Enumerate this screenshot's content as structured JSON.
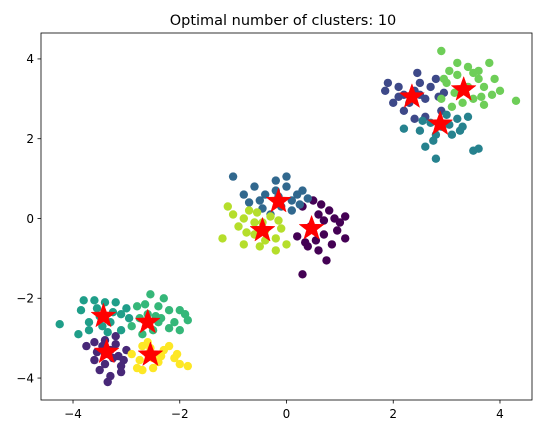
{
  "chart_data": {
    "type": "scatter",
    "title": "Optimal number of clusters: 10",
    "xlabel": "",
    "ylabel": "",
    "xlim": [
      -4.6,
      4.6
    ],
    "ylim": [
      -4.55,
      4.65
    ],
    "xticks": [
      -4,
      -2,
      0,
      2,
      4
    ],
    "yticks": [
      -4,
      -2,
      0,
      2,
      4
    ],
    "grid": false,
    "centroid_color": "#ff0000",
    "series": [
      {
        "color": "#440154",
        "points": [
          [
            0.3,
            0.3
          ],
          [
            0.5,
            0.45
          ],
          [
            0.6,
            0.1
          ],
          [
            0.7,
            -0.05
          ],
          [
            0.8,
            0.2
          ],
          [
            0.9,
            0.0
          ],
          [
            1.0,
            -0.1
          ],
          [
            1.1,
            0.05
          ],
          [
            0.95,
            -0.3
          ],
          [
            0.7,
            -0.4
          ],
          [
            0.55,
            -0.55
          ],
          [
            0.4,
            -0.7
          ],
          [
            0.35,
            -0.6
          ],
          [
            0.6,
            -0.8
          ],
          [
            0.75,
            -1.05
          ],
          [
            0.3,
            -1.4
          ],
          [
            1.1,
            -0.5
          ],
          [
            0.2,
            -0.45
          ],
          [
            0.45,
            -0.2
          ],
          [
            0.85,
            -0.65
          ],
          [
            0.65,
            0.35
          ]
        ]
      },
      {
        "color": "#482878",
        "points": [
          [
            -3.2,
            -2.95
          ],
          [
            -3.4,
            -3.05
          ],
          [
            -3.6,
            -3.1
          ],
          [
            -3.75,
            -3.2
          ],
          [
            -3.3,
            -3.3
          ],
          [
            -3.15,
            -3.45
          ],
          [
            -3.4,
            -3.65
          ],
          [
            -3.5,
            -3.8
          ],
          [
            -3.3,
            -3.95
          ],
          [
            -3.35,
            -4.1
          ],
          [
            -3.1,
            -3.7
          ],
          [
            -3.0,
            -3.3
          ],
          [
            -3.55,
            -3.35
          ],
          [
            -3.05,
            -3.55
          ],
          [
            -3.45,
            -3.2
          ],
          [
            -3.2,
            -3.15
          ],
          [
            -3.6,
            -3.55
          ],
          [
            -3.25,
            -3.5
          ],
          [
            -3.1,
            -3.85
          ],
          [
            -3.4,
            -3.4
          ]
        ]
      },
      {
        "color": "#3e4989",
        "points": [
          [
            2.2,
            3.1
          ],
          [
            2.4,
            3.2
          ],
          [
            2.6,
            3.0
          ],
          [
            2.7,
            3.3
          ],
          [
            2.8,
            3.5
          ],
          [
            2.5,
            3.4
          ],
          [
            2.3,
            2.9
          ],
          [
            2.1,
            3.3
          ],
          [
            1.9,
            3.4
          ],
          [
            2.0,
            2.9
          ],
          [
            2.2,
            2.7
          ],
          [
            2.4,
            2.5
          ],
          [
            2.5,
            3.1
          ],
          [
            2.9,
            2.7
          ],
          [
            2.95,
            3.15
          ],
          [
            2.6,
            2.55
          ],
          [
            2.1,
            3.05
          ],
          [
            2.85,
            3.05
          ],
          [
            1.85,
            3.2
          ],
          [
            2.45,
            3.65
          ]
        ]
      },
      {
        "color": "#31688e",
        "points": [
          [
            -0.6,
            0.8
          ],
          [
            -0.4,
            0.6
          ],
          [
            -0.2,
            0.7
          ],
          [
            0.0,
            0.8
          ],
          [
            0.2,
            0.6
          ],
          [
            0.4,
            0.5
          ],
          [
            0.3,
            0.7
          ],
          [
            -0.1,
            0.3
          ],
          [
            0.1,
            0.2
          ],
          [
            -0.8,
            0.6
          ],
          [
            -0.5,
            0.45
          ],
          [
            -0.3,
            0.1
          ],
          [
            0.0,
            1.05
          ],
          [
            -0.2,
            0.95
          ],
          [
            0.1,
            0.45
          ],
          [
            -1.0,
            1.05
          ],
          [
            -0.7,
            0.4
          ],
          [
            0.25,
            0.35
          ],
          [
            -0.45,
            0.25
          ],
          [
            -0.15,
            0.55
          ]
        ]
      },
      {
        "color": "#26828e",
        "points": [
          [
            2.5,
            2.2
          ],
          [
            2.7,
            2.4
          ],
          [
            2.9,
            2.3
          ],
          [
            3.1,
            2.1
          ],
          [
            3.2,
            2.5
          ],
          [
            3.3,
            2.3
          ],
          [
            3.0,
            2.6
          ],
          [
            2.8,
            2.1
          ],
          [
            2.6,
            1.8
          ],
          [
            2.8,
            1.5
          ],
          [
            3.5,
            1.7
          ],
          [
            3.6,
            1.75
          ],
          [
            2.2,
            2.25
          ],
          [
            3.4,
            2.55
          ],
          [
            3.05,
            2.35
          ],
          [
            2.75,
            1.95
          ],
          [
            3.25,
            2.2
          ],
          [
            2.55,
            2.45
          ]
        ]
      },
      {
        "color": "#1f9e89",
        "points": [
          [
            -4.25,
            -2.65
          ],
          [
            -3.8,
            -2.05
          ],
          [
            -3.6,
            -2.05
          ],
          [
            -3.4,
            -2.1
          ],
          [
            -3.2,
            -2.1
          ],
          [
            -3.0,
            -2.25
          ],
          [
            -3.5,
            -2.45
          ],
          [
            -3.3,
            -2.6
          ],
          [
            -3.7,
            -2.8
          ],
          [
            -3.9,
            -2.9
          ],
          [
            -3.1,
            -2.4
          ],
          [
            -3.55,
            -2.25
          ],
          [
            -3.25,
            -2.35
          ],
          [
            -3.7,
            -2.6
          ],
          [
            -3.35,
            -2.85
          ],
          [
            -2.95,
            -2.5
          ],
          [
            -3.85,
            -2.3
          ],
          [
            -3.1,
            -2.8
          ],
          [
            -3.45,
            -2.7
          ]
        ]
      },
      {
        "color": "#35b779",
        "points": [
          [
            -2.8,
            -2.2
          ],
          [
            -2.6,
            -2.4
          ],
          [
            -2.4,
            -2.2
          ],
          [
            -2.2,
            -2.3
          ],
          [
            -2.0,
            -2.3
          ],
          [
            -1.9,
            -2.4
          ],
          [
            -2.5,
            -2.8
          ],
          [
            -2.7,
            -2.9
          ],
          [
            -2.9,
            -2.7
          ],
          [
            -2.4,
            -2.6
          ],
          [
            -2.1,
            -2.6
          ],
          [
            -1.85,
            -2.55
          ],
          [
            -2.55,
            -1.9
          ],
          [
            -2.3,
            -2.0
          ],
          [
            -2.0,
            -2.8
          ],
          [
            -2.75,
            -2.5
          ],
          [
            -2.2,
            -2.75
          ],
          [
            -2.45,
            -2.45
          ],
          [
            -2.65,
            -2.15
          ],
          [
            -2.35,
            -2.5
          ]
        ]
      },
      {
        "color": "#6ece58",
        "points": [
          [
            2.9,
            4.2
          ],
          [
            3.2,
            3.9
          ],
          [
            3.4,
            3.8
          ],
          [
            3.6,
            3.7
          ],
          [
            3.8,
            3.9
          ],
          [
            3.9,
            3.5
          ],
          [
            3.7,
            3.3
          ],
          [
            3.5,
            3.0
          ],
          [
            3.3,
            2.9
          ],
          [
            3.1,
            2.8
          ],
          [
            2.9,
            3.0
          ],
          [
            3.0,
            3.4
          ],
          [
            3.2,
            3.6
          ],
          [
            4.0,
            3.2
          ],
          [
            4.3,
            2.95
          ],
          [
            3.7,
            2.85
          ],
          [
            3.6,
            3.5
          ],
          [
            3.4,
            3.3
          ],
          [
            3.15,
            3.15
          ],
          [
            3.85,
            3.1
          ],
          [
            3.5,
            3.65
          ],
          [
            3.05,
            3.7
          ],
          [
            2.95,
            3.5
          ],
          [
            3.65,
            3.05
          ]
        ]
      },
      {
        "color": "#b5de2b",
        "points": [
          [
            -1.1,
            0.3
          ],
          [
            -1.0,
            0.1
          ],
          [
            -0.8,
            0.0
          ],
          [
            -0.6,
            -0.1
          ],
          [
            -0.4,
            -0.3
          ],
          [
            -0.2,
            -0.5
          ],
          [
            -0.6,
            -0.4
          ],
          [
            -0.8,
            -0.65
          ],
          [
            -0.5,
            -0.7
          ],
          [
            -0.2,
            -0.8
          ],
          [
            -0.4,
            -0.55
          ],
          [
            0.0,
            -0.65
          ],
          [
            -0.7,
            0.2
          ],
          [
            -1.2,
            -0.5
          ],
          [
            -0.3,
            0.05
          ],
          [
            -0.9,
            -0.2
          ],
          [
            -0.55,
            0.15
          ],
          [
            -0.1,
            -0.25
          ],
          [
            -0.75,
            -0.35
          ],
          [
            -0.45,
            -0.1
          ],
          [
            -0.15,
            -0.05
          ]
        ]
      },
      {
        "color": "#fde725",
        "points": [
          [
            -2.7,
            -3.2
          ],
          [
            -2.6,
            -3.4
          ],
          [
            -2.5,
            -3.5
          ],
          [
            -2.3,
            -3.3
          ],
          [
            -2.1,
            -3.5
          ],
          [
            -2.0,
            -3.65
          ],
          [
            -1.85,
            -3.7
          ],
          [
            -2.8,
            -3.75
          ],
          [
            -2.7,
            -3.8
          ],
          [
            -2.4,
            -3.6
          ],
          [
            -2.9,
            -3.4
          ],
          [
            -2.6,
            -3.1
          ],
          [
            -2.2,
            -3.2
          ],
          [
            -2.5,
            -3.75
          ],
          [
            -2.35,
            -3.45
          ],
          [
            -2.05,
            -3.4
          ],
          [
            -2.75,
            -3.55
          ],
          [
            -2.55,
            -3.25
          ]
        ]
      }
    ],
    "centroids": [
      [
        -3.43,
        -2.45
      ],
      [
        -2.6,
        -2.6
      ],
      [
        -3.37,
        -3.35
      ],
      [
        -2.55,
        -3.42
      ],
      [
        -0.45,
        -0.3
      ],
      [
        -0.15,
        0.43
      ],
      [
        0.47,
        -0.25
      ],
      [
        2.35,
        3.05
      ],
      [
        3.32,
        3.23
      ],
      [
        2.88,
        2.37
      ]
    ]
  }
}
